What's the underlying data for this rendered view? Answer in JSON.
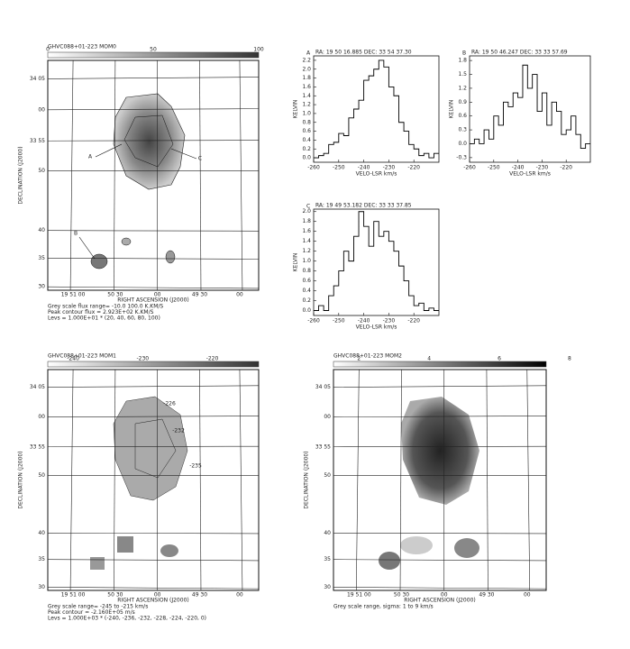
{
  "figure": {
    "maps": [
      {
        "title": "GHVC088+01-223 MOM0",
        "colorbar_ticks": [
          "0",
          "50",
          "100"
        ],
        "yticks": [
          "34 05",
          "00",
          "33 55",
          "50",
          "40",
          "35",
          "30"
        ],
        "xticks": [
          "19 51 00",
          "50 30",
          "00",
          "49 30",
          "00"
        ],
        "ylabel": "DECLINATION (J2000)",
        "xlabel": "RIGHT ASCENSION (J2000)",
        "notes": [
          "A",
          "C",
          "B"
        ],
        "caption": [
          "Grey scale flux range= -10.0 100.0 K.KM/S",
          "Peak contour flux = 2.923E+02 K.KM/S",
          "Levs = 1.000E+01 * (20, 40, 60, 80, 100)"
        ]
      },
      {
        "title": "GHVC088+01-223 MOM1",
        "colorbar_ticks": [
          "-240",
          "-230",
          "-220"
        ],
        "yticks": [
          "34 05",
          "00",
          "33 55",
          "50",
          "40",
          "35",
          "30"
        ],
        "xticks": [
          "19 51 00",
          "50 30",
          "00",
          "49 30",
          "00"
        ],
        "ylabel": "DECLINATION (J2000)",
        "xlabel": "RIGHT ASCENSION (J2000)",
        "notes": [
          "-226",
          "-232",
          "-235"
        ],
        "caption": [
          "Grey scale range= -245 to -215 km/s",
          "Peak contour = -2.160E+05 m/s",
          "Levs = 1.000E+03 * (-240, -236, -232, -228, -224, -220, 0)"
        ]
      },
      {
        "title": "GHVC088+01-223 MOM2",
        "colorbar_ticks": [
          "2",
          "4",
          "6",
          "8"
        ],
        "yticks": [
          "34 05",
          "00",
          "33 55",
          "50",
          "40",
          "35",
          "30"
        ],
        "xticks": [
          "19 51 00",
          "50 30",
          "00",
          "49 30",
          "00"
        ],
        "ylabel": "DECLINATION (J2000)",
        "xlabel": "RIGHT ASCENSION (J2000)",
        "notes": [],
        "caption": [
          "Grey scale range, sigma: 1 to 9 km/s"
        ]
      }
    ],
    "spectra": [
      {
        "type": "step",
        "panel": "A",
        "title": "RA: 19 50 16.885 DEC: 33 54 37.30",
        "xlabel": "VELO-LSR km/s",
        "ylabel": "KELVIN",
        "x": [
          -259,
          -257,
          -255,
          -253,
          -251,
          -249,
          -247,
          -245,
          -243,
          -241,
          -239,
          -237,
          -235,
          -233,
          -231,
          -229,
          -227,
          -225,
          -223,
          -221,
          -219,
          -217,
          -215,
          -213,
          -211
        ],
        "values": [
          0.0,
          0.05,
          0.1,
          0.3,
          0.35,
          0.55,
          0.5,
          0.9,
          1.1,
          1.3,
          1.75,
          1.85,
          2.0,
          2.2,
          2.05,
          1.6,
          1.4,
          0.8,
          0.6,
          0.3,
          0.2,
          0.05,
          0.1,
          0.0,
          0.1
        ],
        "xlim": [
          -260,
          -210
        ],
        "ylim": [
          -0.1,
          2.3
        ],
        "xticks": [
          -260,
          -250,
          -240,
          -230,
          -220
        ],
        "yticks": [
          {
            "value": 0,
            "label": "0.0"
          },
          0.2,
          0.4,
          0.6,
          0.8,
          {
            "value": 1,
            "label": "1.0"
          },
          1.2,
          1.4,
          1.6,
          1.8,
          {
            "value": 2,
            "label": "2.0"
          },
          2.2
        ]
      },
      {
        "type": "step",
        "panel": "B",
        "title": "RA: 19 50 46.247 DEC: 33 33 57.69",
        "xlabel": "VELO-LSR km/s",
        "ylabel": "KELVIN",
        "x": [
          -259,
          -257,
          -255,
          -253,
          -251,
          -249,
          -247,
          -245,
          -243,
          -241,
          -239,
          -237,
          -235,
          -233,
          -231,
          -229,
          -227,
          -225,
          -223,
          -221,
          -219,
          -217,
          -215,
          -213,
          -211
        ],
        "values": [
          0.0,
          0.1,
          0.0,
          0.3,
          0.1,
          0.6,
          0.4,
          0.9,
          0.8,
          1.1,
          1.0,
          1.7,
          1.2,
          1.5,
          0.7,
          1.1,
          0.4,
          0.9,
          0.7,
          0.2,
          0.3,
          0.6,
          0.2,
          -0.1,
          0.0
        ],
        "xlim": [
          -260,
          -210
        ],
        "ylim": [
          -0.4,
          1.9
        ],
        "xticks": [
          -260,
          -250,
          -240,
          -230,
          -220
        ],
        "yticks": [
          -0.3,
          {
            "value": 0,
            "label": "0.0"
          },
          0.3,
          0.6,
          0.9,
          1.2,
          1.5,
          1.8
        ]
      },
      {
        "type": "step",
        "panel": "C",
        "title": "RA: 19 49 53.182 DEC: 33 33 37.85",
        "xlabel": "VELO-LSR km/s",
        "ylabel": "KELVIN",
        "x": [
          -259,
          -257,
          -255,
          -253,
          -251,
          -249,
          -247,
          -245,
          -243,
          -241,
          -239,
          -237,
          -235,
          -233,
          -231,
          -229,
          -227,
          -225,
          -223,
          -221,
          -219,
          -217,
          -215,
          -213,
          -211
        ],
        "values": [
          0.0,
          0.1,
          0.0,
          0.3,
          0.5,
          0.8,
          1.2,
          1.0,
          1.5,
          2.0,
          1.7,
          1.3,
          1.8,
          1.5,
          1.6,
          1.4,
          1.2,
          0.9,
          0.6,
          0.3,
          0.1,
          0.15,
          0.0,
          0.05,
          0.0
        ],
        "xlim": [
          -260,
          -210
        ],
        "ylim": [
          -0.1,
          2.05
        ],
        "xticks": [
          -260,
          -250,
          -240,
          -230,
          -220
        ],
        "yticks": [
          {
            "value": 0,
            "label": "0.0"
          },
          0.2,
          0.4,
          0.6,
          0.8,
          {
            "value": 1,
            "label": "1.0"
          },
          1.2,
          1.4,
          1.6,
          1.8,
          {
            "value": 2,
            "label": "2.0"
          }
        ]
      }
    ]
  }
}
